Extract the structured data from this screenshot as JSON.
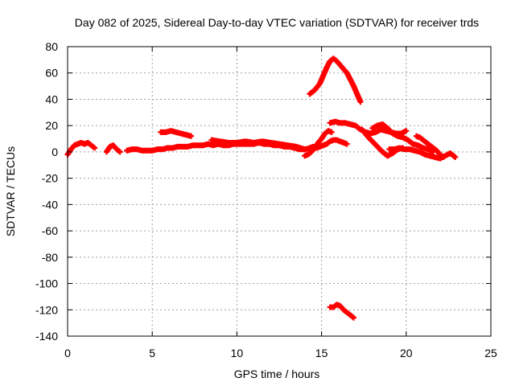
{
  "chart_data": {
    "type": "scatter",
    "title": "Day 082 of 2025, Sidereal Day-to-day VTEC variation (SDTVAR) for receiver trds",
    "xlabel": "GPS time / hours",
    "ylabel": "SDTVAR / TECUs",
    "xlim": [
      0,
      25
    ],
    "ylim": [
      -140,
      80
    ],
    "xticks": [
      0,
      5,
      10,
      15,
      20,
      25
    ],
    "yticks": [
      -140,
      -120,
      -100,
      -80,
      -60,
      -40,
      -20,
      0,
      20,
      40,
      60,
      80
    ],
    "grid": true,
    "marker": "plus",
    "colors": {
      "series": "#ff0000",
      "grid": "#a0a0a0",
      "axes": "#000000",
      "background": "#ffffff"
    },
    "series": [
      {
        "name": "SDTVAR",
        "segments": [
          {
            "x": [
              0.0,
              0.2,
              0.4,
              0.6,
              0.8,
              1.0,
              1.2,
              1.4,
              1.6
            ],
            "y": [
              -2,
              2,
              5,
              6,
              7,
              6,
              7,
              5,
              3
            ]
          },
          {
            "x": [
              2.3,
              2.5,
              2.7,
              2.9,
              3.1
            ],
            "y": [
              0,
              4,
              5,
              2,
              0
            ]
          },
          {
            "x": [
              3.5,
              3.8,
              4.1,
              4.4,
              4.7,
              5.0,
              5.3,
              5.6,
              5.9,
              6.2,
              6.5,
              6.8,
              7.1,
              7.4,
              7.7,
              8.0,
              8.3,
              8.6,
              8.9,
              9.2,
              9.5,
              9.8,
              10.1,
              10.4,
              10.7,
              11.0,
              11.3,
              11.6,
              11.9,
              12.2,
              12.5,
              12.8,
              13.1,
              13.4,
              13.7,
              14.0
            ],
            "y": [
              1,
              2,
              2,
              1,
              1,
              1,
              2,
              2,
              3,
              3,
              4,
              4,
              4,
              5,
              5,
              5,
              6,
              5,
              6,
              5,
              5,
              6,
              6,
              6,
              6,
              6,
              7,
              6,
              6,
              5,
              5,
              4,
              4,
              3,
              2,
              2
            ]
          },
          {
            "x": [
              8.5,
              9.0,
              9.5,
              10.0,
              10.5,
              11.0,
              11.5,
              12.0,
              12.5,
              13.0,
              13.5,
              14.0,
              14.4
            ],
            "y": [
              9,
              8,
              7,
              7,
              8,
              7,
              8,
              7,
              6,
              5,
              4,
              2,
              3
            ]
          },
          {
            "x": [
              5.5,
              5.8,
              6.1,
              6.4,
              6.7,
              7.0,
              7.3
            ],
            "y": [
              15,
              15,
              16,
              15,
              14,
              13,
              12
            ]
          },
          {
            "x": [
              14.0,
              14.2,
              14.4,
              14.6,
              14.8,
              15.0,
              15.2,
              15.4,
              15.6
            ],
            "y": [
              -3,
              -2,
              0,
              3,
              7,
              10,
              14,
              16,
              15
            ]
          },
          {
            "x": [
              14.3,
              14.5,
              14.7,
              14.9,
              15.1,
              15.3,
              15.5,
              15.7,
              15.9,
              16.1,
              16.3,
              16.5
            ],
            "y": [
              3,
              4,
              3,
              4,
              5,
              6,
              8,
              9,
              9,
              8,
              7,
              6
            ]
          },
          {
            "x": [
              14.3,
              14.6,
              14.9,
              15.1,
              15.3,
              15.5,
              15.7,
              15.9,
              16.1,
              16.3,
              16.5,
              16.7,
              16.9,
              17.1,
              17.3
            ],
            "y": [
              44,
              47,
              52,
              58,
              64,
              69,
              71,
              69,
              66,
              63,
              60,
              55,
              50,
              44,
              38
            ]
          },
          {
            "x": [
              15.5,
              15.8,
              16.1,
              16.4,
              16.7,
              17.0,
              17.3,
              17.6,
              17.9,
              18.2,
              18.5,
              18.8,
              19.1,
              19.4,
              19.7,
              20.0
            ],
            "y": [
              22,
              23,
              22,
              22,
              21,
              20,
              17,
              15,
              14,
              15,
              17,
              16,
              15,
              14,
              14,
              16
            ]
          },
          {
            "x": [
              17.4,
              17.7,
              18.0,
              18.3,
              18.6,
              18.9,
              19.2,
              19.5,
              19.8
            ],
            "y": [
              17,
              12,
              8,
              4,
              0,
              -3,
              -1,
              2,
              3
            ]
          },
          {
            "x": [
              18.0,
              18.3,
              18.6,
              18.9,
              19.2,
              19.5,
              19.8,
              20.1,
              20.4,
              20.7,
              21.0,
              21.3,
              21.6
            ],
            "y": [
              18,
              20,
              21,
              18,
              14,
              12,
              11,
              9,
              6,
              5,
              3,
              2,
              0
            ]
          },
          {
            "x": [
              19.0,
              19.3,
              19.6,
              19.9,
              20.2,
              20.5,
              20.8,
              21.1,
              21.4,
              21.7,
              22.0,
              22.3,
              22.6,
              22.9
            ],
            "y": [
              2,
              2,
              3,
              2,
              2,
              1,
              0,
              -2,
              -3,
              -4,
              -5,
              -3,
              -1,
              -4
            ]
          },
          {
            "x": [
              20.6,
              20.8,
              21.0,
              21.2,
              21.4,
              21.6,
              21.8,
              22.0,
              22.2
            ],
            "y": [
              12,
              11,
              9,
              7,
              5,
              3,
              1,
              -2,
              -4
            ]
          },
          {
            "x": [
              15.5,
              15.7,
              15.9,
              16.1,
              16.3,
              16.5,
              16.7,
              16.9
            ],
            "y": [
              -118,
              -118,
              -116,
              -117,
              -120,
              -122,
              -124,
              -126
            ]
          }
        ]
      }
    ]
  }
}
